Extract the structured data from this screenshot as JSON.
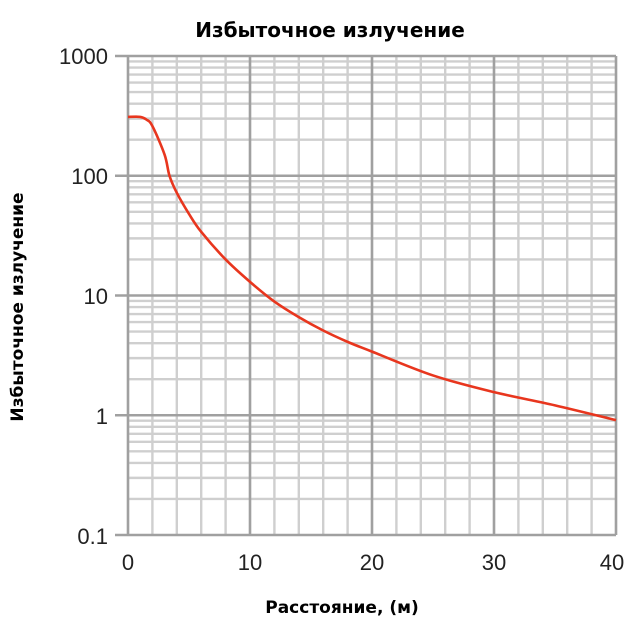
{
  "chart_data": {
    "type": "line",
    "title": "Избыточное излучение",
    "xlabel": "Расстояние, (м)",
    "ylabel": "Избыточное излучение",
    "xlim": [
      0,
      40
    ],
    "ylim": [
      0.1,
      1000
    ],
    "yscale": "log",
    "grid": true,
    "x_ticks": [
      "0",
      "10",
      "20",
      "30",
      "40"
    ],
    "y_ticks": [
      "0.1",
      "1",
      "10",
      "100",
      "1000"
    ],
    "line_color": "#e8361e",
    "series": [
      {
        "x": [
          0,
          1,
          1.5,
          2,
          3,
          3.4,
          4,
          5,
          6,
          8,
          10,
          12,
          14,
          16,
          18,
          20,
          25,
          30,
          35,
          40
        ],
        "y": [
          310,
          310,
          295,
          260,
          150,
          100,
          72,
          48,
          34,
          20,
          13,
          8.9,
          6.6,
          5.1,
          4.1,
          3.4,
          2.15,
          1.56,
          1.21,
          0.91
        ]
      }
    ]
  }
}
